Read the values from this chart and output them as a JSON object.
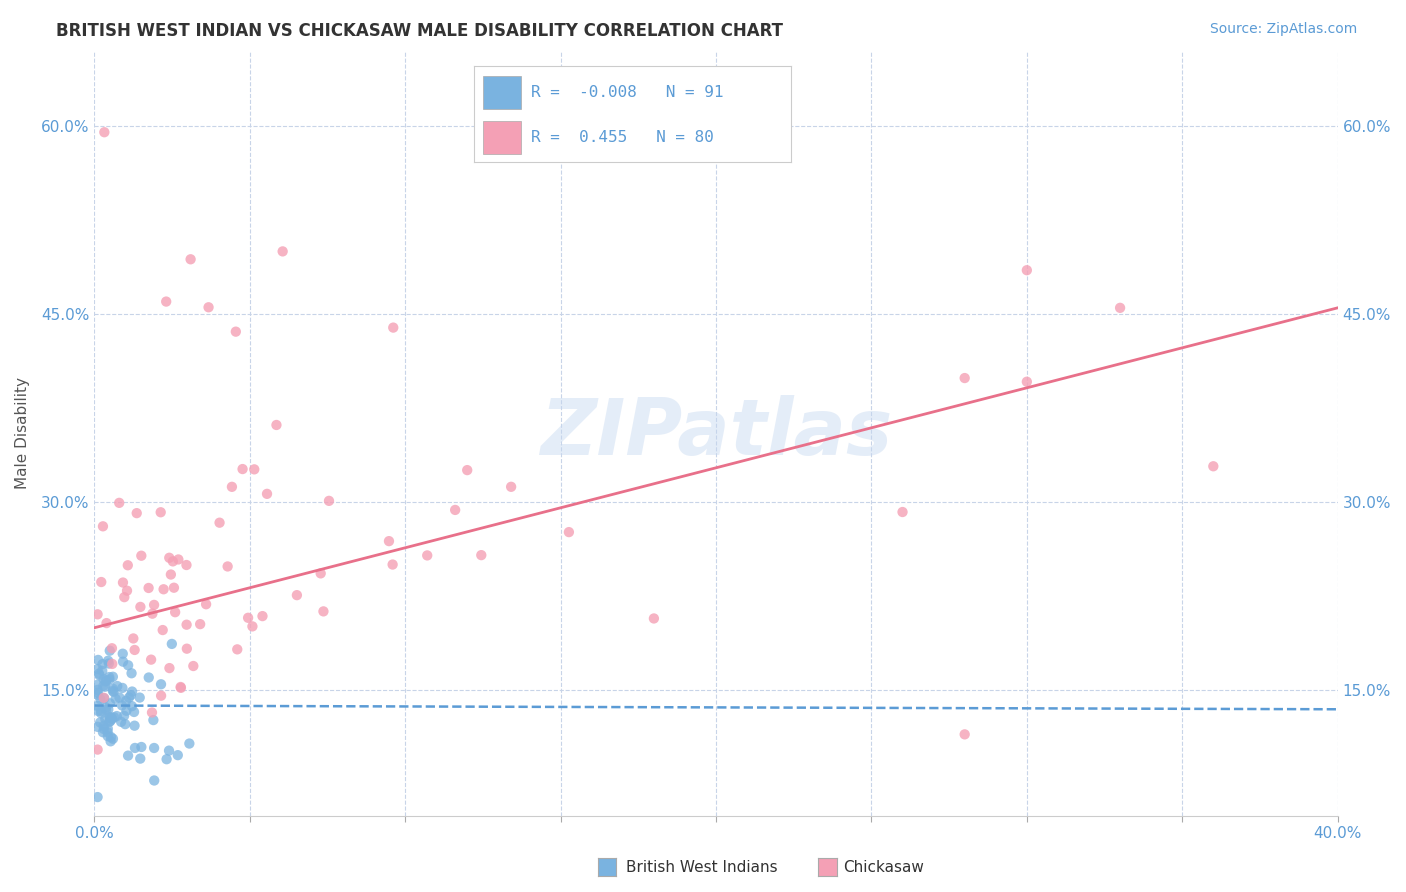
{
  "title": "BRITISH WEST INDIAN VS CHICKASAW MALE DISABILITY CORRELATION CHART",
  "source": "Source: ZipAtlas.com",
  "ylabel": "Male Disability",
  "legend_bwi_label": "British West Indians",
  "legend_chickasaw_label": "Chickasaw",
  "R_bwi": -0.008,
  "N_bwi": 91,
  "R_chickasaw": 0.455,
  "N_chickasaw": 80,
  "watermark": "ZIPatlas",
  "background_color": "#ffffff",
  "grid_color": "#c8d4e8",
  "bwi_color": "#7ab3e0",
  "chickasaw_color": "#f4a0b5",
  "bwi_line_color": "#5b9bd5",
  "chickasaw_line_color": "#e8708a",
  "tick_color": "#5b9bd5",
  "title_color": "#333333",
  "ylabel_color": "#555555",
  "xmin": 0.0,
  "xmax": 0.4,
  "ymin": 0.05,
  "ymax": 0.66,
  "y_ticks": [
    0.15,
    0.3,
    0.45,
    0.6
  ],
  "x_ticks": [
    0.0,
    0.05,
    0.1,
    0.15,
    0.2,
    0.25,
    0.3,
    0.35,
    0.4
  ],
  "chickasaw_line_x0": 0.0,
  "chickasaw_line_y0": 0.2,
  "chickasaw_line_x1": 0.4,
  "chickasaw_line_y1": 0.455,
  "bwi_line_x0": 0.0,
  "bwi_line_y0": 0.138,
  "bwi_line_x1": 0.4,
  "bwi_line_y1": 0.135
}
